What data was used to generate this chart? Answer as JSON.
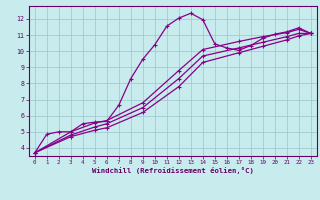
{
  "xlabel": "Windchill (Refroidissement éolien,°C)",
  "bg_color": "#c8ecee",
  "line_color": "#880088",
  "grid_color": "#98c8cc",
  "axis_color": "#660066",
  "tick_color": "#660066",
  "xlim": [
    -0.5,
    23.5
  ],
  "ylim": [
    3.5,
    12.8
  ],
  "xticks": [
    0,
    1,
    2,
    3,
    4,
    5,
    6,
    7,
    8,
    9,
    10,
    11,
    12,
    13,
    14,
    15,
    16,
    17,
    18,
    19,
    20,
    21,
    22,
    23
  ],
  "yticks": [
    4,
    5,
    6,
    7,
    8,
    9,
    10,
    11,
    12
  ],
  "curve1_x": [
    0,
    1,
    2,
    3,
    4,
    5,
    6,
    7,
    8,
    9,
    10,
    11,
    12,
    13,
    14,
    15,
    16,
    17,
    18,
    19,
    20,
    21,
    22,
    23
  ],
  "curve1_y": [
    3.7,
    4.85,
    5.0,
    5.0,
    5.5,
    5.6,
    5.65,
    6.65,
    8.3,
    9.5,
    10.4,
    11.55,
    12.05,
    12.35,
    11.95,
    10.45,
    10.2,
    10.05,
    10.35,
    10.8,
    11.05,
    11.2,
    11.45,
    11.1
  ],
  "line2_x": [
    0,
    3,
    5,
    6,
    9,
    12,
    14,
    17,
    19,
    21,
    22,
    23
  ],
  "line2_y": [
    3.7,
    5.0,
    5.55,
    5.7,
    6.8,
    8.8,
    10.1,
    10.6,
    10.9,
    11.15,
    11.35,
    11.1
  ],
  "line3_x": [
    0,
    3,
    5,
    6,
    9,
    12,
    14,
    17,
    19,
    21,
    22,
    23
  ],
  "line3_y": [
    3.7,
    4.8,
    5.3,
    5.5,
    6.5,
    8.3,
    9.7,
    10.2,
    10.55,
    10.9,
    11.1,
    11.1
  ],
  "line4_x": [
    0,
    3,
    5,
    6,
    9,
    12,
    14,
    17,
    19,
    21,
    22,
    23
  ],
  "line4_y": [
    3.7,
    4.7,
    5.1,
    5.25,
    6.2,
    7.8,
    9.3,
    9.9,
    10.3,
    10.7,
    10.95,
    11.1
  ]
}
